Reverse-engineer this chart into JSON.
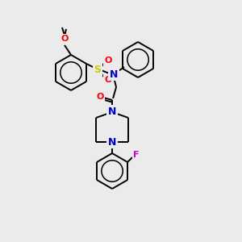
{
  "background_color": "#ebebeb",
  "bond_color": "#000000",
  "atom_colors": {
    "N": "#0000cc",
    "O": "#ff0000",
    "S": "#cccc00",
    "F": "#cc00cc",
    "C": "#000000"
  },
  "figsize": [
    3.0,
    3.0
  ],
  "dpi": 100,
  "hex_r": 22,
  "lw": 1.4
}
